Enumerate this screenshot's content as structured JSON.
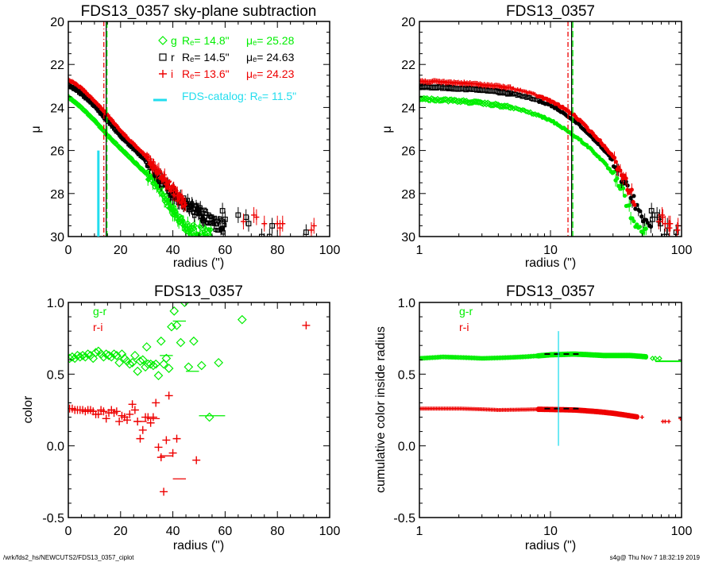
{
  "footer": {
    "path": "/wrk/fds2_hs/NEWCUTS2/FDS13_0357_ciplot",
    "stamp": "s4g@  Thu Nov  7 18:32:19 2019"
  },
  "colors": {
    "g": "#00ee00",
    "r": "#000000",
    "i": "#ee0000",
    "catalog": "#22ddee"
  },
  "chart_data": [
    {
      "id": "profile-linear",
      "type": "scatter",
      "title": "FDS13_0357 sky-plane subtraction",
      "xlabel": "radius (\")",
      "ylabel": "μ",
      "xscale": "linear",
      "xlim": [
        0,
        100
      ],
      "ylim": [
        30,
        20
      ],
      "xticks": [
        "0",
        "20",
        "40",
        "60",
        "80",
        "100"
      ],
      "yticks": [
        "20",
        "22",
        "24",
        "26",
        "28",
        "30"
      ],
      "legend": {
        "placement": "top-right",
        "entries": [
          {
            "band": "g",
            "marker": "diamond",
            "label": "g",
            "re": "Rₑ=  14.8\"",
            "mue": "μₑ= 25.28"
          },
          {
            "band": "r",
            "marker": "square",
            "label": "r",
            "re": "Rₑ=  14.5\"",
            "mue": "μₑ= 24.63"
          },
          {
            "band": "i",
            "marker": "plus",
            "label": "i",
            "re": "Rₑ=  13.6\"",
            "mue": "μₑ= 24.23"
          }
        ],
        "catalog": "FDS-catalog: Rₑ=  11.5\""
      },
      "vlines": [
        {
          "x": 13.6,
          "band": "i",
          "style": "dashdot"
        },
        {
          "x": 14.5,
          "band": "r",
          "style": "solid"
        },
        {
          "x": 14.8,
          "band": "g",
          "style": "dashed"
        }
      ],
      "catalog_line": {
        "x": 11.5,
        "y_from": 30,
        "y_to": 26
      },
      "series": [
        {
          "band": "g",
          "profile": [
            [
              0,
              23.5
            ],
            [
              5,
              24.0
            ],
            [
              10,
              24.6
            ],
            [
              15,
              25.3
            ],
            [
              20,
              25.9
            ],
            [
              25,
              26.5
            ],
            [
              30,
              27.1
            ],
            [
              35,
              27.8
            ],
            [
              40,
              28.8
            ],
            [
              45,
              29.6
            ],
            [
              50,
              29.8
            ],
            [
              55,
              30.0
            ]
          ]
        },
        {
          "band": "r",
          "profile": [
            [
              0,
              22.95
            ],
            [
              5,
              23.35
            ],
            [
              10,
              23.9
            ],
            [
              15,
              24.6
            ],
            [
              20,
              25.3
            ],
            [
              25,
              25.9
            ],
            [
              30,
              26.5
            ],
            [
              35,
              27.3
            ],
            [
              40,
              28.0
            ],
            [
              45,
              28.5
            ],
            [
              50,
              28.9
            ],
            [
              55,
              29.3
            ],
            [
              60,
              29.6
            ]
          ]
        },
        {
          "band": "i",
          "profile": [
            [
              0,
              22.7
            ],
            [
              5,
              23.1
            ],
            [
              10,
              23.7
            ],
            [
              15,
              24.35
            ],
            [
              20,
              25.1
            ],
            [
              25,
              25.7
            ],
            [
              30,
              26.3
            ],
            [
              35,
              27.1
            ],
            [
              40,
              27.8
            ],
            [
              45,
              28.6
            ]
          ]
        }
      ],
      "outer_points": {
        "r": [
          [
            59,
            28.8
          ],
          [
            60,
            29.2
          ],
          [
            65,
            29.0
          ],
          [
            68,
            29.1
          ],
          [
            69,
            29.4
          ],
          [
            74,
            30.0
          ],
          [
            77,
            30.0
          ],
          [
            78,
            29.5
          ],
          [
            91,
            29.8
          ]
        ],
        "i": [
          [
            67,
            29.3
          ],
          [
            71,
            29.0
          ],
          [
            72,
            29.1
          ],
          [
            75,
            29.4
          ],
          [
            80,
            29.4
          ],
          [
            81,
            29.6
          ],
          [
            82,
            29.4
          ],
          [
            93,
            29.7
          ],
          [
            94,
            29.5
          ]
        ]
      }
    },
    {
      "id": "profile-log",
      "type": "scatter",
      "title": "FDS13_0357",
      "xlabel": "radius (\")",
      "ylabel": "μ",
      "xscale": "log",
      "xlim": [
        1,
        100
      ],
      "ylim": [
        30,
        20
      ],
      "xticks": [
        "1",
        "10",
        "100"
      ],
      "yticks": [
        "20",
        "22",
        "24",
        "26",
        "28",
        "30"
      ],
      "vlines": [
        {
          "x": 13.6,
          "band": "i",
          "style": "dashdot"
        },
        {
          "x": 14.5,
          "band": "r",
          "style": "solid"
        },
        {
          "x": 14.8,
          "band": "g",
          "style": "dashed"
        }
      ]
    },
    {
      "id": "color-profile",
      "type": "scatter",
      "title": "FDS13_0357",
      "xlabel": "radius (\")",
      "ylabel": "color",
      "xscale": "linear",
      "xlim": [
        0,
        100
      ],
      "ylim": [
        -0.5,
        1.0
      ],
      "xticks": [
        "0",
        "20",
        "40",
        "60",
        "80",
        "100"
      ],
      "yticks": [
        "1.0",
        "0.5",
        "0.0",
        "-0.5"
      ],
      "legend": {
        "placement": "top-left",
        "entries": [
          {
            "band": "g",
            "label": "g-r"
          },
          {
            "band": "i",
            "label": "r-i"
          }
        ]
      },
      "series": [
        {
          "name": "g-r",
          "band": "g",
          "marker": "diamond",
          "points": [
            [
              0.5,
              0.61
            ],
            [
              1.5,
              0.62
            ],
            [
              2.5,
              0.61
            ],
            [
              3.5,
              0.63
            ],
            [
              4.5,
              0.62
            ],
            [
              5.5,
              0.63
            ],
            [
              6.5,
              0.62
            ],
            [
              7.5,
              0.64
            ],
            [
              8.5,
              0.63
            ],
            [
              9.5,
              0.61
            ],
            [
              10.5,
              0.65
            ],
            [
              11.5,
              0.66
            ],
            [
              12.5,
              0.64
            ],
            [
              13.5,
              0.62
            ],
            [
              14.5,
              0.64
            ],
            [
              15.5,
              0.63
            ],
            [
              16.5,
              0.62
            ],
            [
              17.5,
              0.64
            ],
            [
              18.5,
              0.63
            ],
            [
              19.5,
              0.58
            ],
            [
              20.5,
              0.64
            ],
            [
              21.5,
              0.61
            ],
            [
              22.5,
              0.59
            ],
            [
              23.5,
              0.57
            ],
            [
              24.5,
              0.58
            ],
            [
              25.5,
              0.63
            ],
            [
              26.5,
              0.52
            ],
            [
              27.5,
              0.59
            ],
            [
              28.5,
              0.6
            ],
            [
              29.5,
              0.55
            ],
            [
              30.5,
              0.57
            ],
            [
              31.5,
              0.57
            ],
            [
              32.5,
              0.56
            ],
            [
              33.5,
              0.57
            ],
            [
              34.5,
              0.49
            ],
            [
              35.5,
              0.73
            ],
            [
              36.5,
              0.57
            ],
            [
              37.5,
              0.61
            ],
            [
              38.5,
              0.54
            ],
            [
              39.5,
              0.83
            ],
            [
              40.5,
              0.94
            ],
            [
              41.5,
              0.84
            ],
            [
              43,
              0.72
            ],
            [
              44.5,
              1.0
            ],
            [
              46,
              0.55
            ],
            [
              48,
              0.73
            ],
            [
              51,
              0.56
            ],
            [
              57.5,
              0.58
            ],
            [
              66.5,
              0.88
            ],
            [
              54,
              0.2
            ],
            [
              30,
              0.69
            ]
          ]
        },
        {
          "name": "r-i",
          "band": "i",
          "marker": "plus",
          "points": [
            [
              0.5,
              0.26
            ],
            [
              1.5,
              0.26
            ],
            [
              2.5,
              0.25
            ],
            [
              3.5,
              0.25
            ],
            [
              4.5,
              0.25
            ],
            [
              5.5,
              0.25
            ],
            [
              6.5,
              0.24
            ],
            [
              7.5,
              0.25
            ],
            [
              8.5,
              0.25
            ],
            [
              9.5,
              0.24
            ],
            [
              10.5,
              0.22
            ],
            [
              11.5,
              0.22
            ],
            [
              12.5,
              0.25
            ],
            [
              13.5,
              0.24
            ],
            [
              14.5,
              0.19
            ],
            [
              15.5,
              0.23
            ],
            [
              16.5,
              0.25
            ],
            [
              17.5,
              0.23
            ],
            [
              18.5,
              0.24
            ],
            [
              19.5,
              0.17
            ],
            [
              20.5,
              0.21
            ],
            [
              21.5,
              0.2
            ],
            [
              22.5,
              0.18
            ],
            [
              23.5,
              0.22
            ],
            [
              24.5,
              0.29
            ],
            [
              25.5,
              0.25
            ],
            [
              26.5,
              0.17
            ],
            [
              27.5,
              0.05
            ],
            [
              28.5,
              0.11
            ],
            [
              29.5,
              0.2
            ],
            [
              30.5,
              0.2
            ],
            [
              31.5,
              0.16
            ],
            [
              32.5,
              0.2
            ],
            [
              33.5,
              0.3
            ],
            [
              34.5,
              -0.01
            ],
            [
              35.5,
              -0.08
            ],
            [
              36.5,
              -0.32
            ],
            [
              37.5,
              0.04
            ],
            [
              38.5,
              0.35
            ],
            [
              40,
              -0.05
            ],
            [
              41.5,
              0.05
            ],
            [
              49,
              -0.1
            ],
            [
              91,
              0.84
            ]
          ]
        }
      ],
      "errorbars": [
        {
          "band": "g",
          "x1": 40,
          "x2": 45,
          "y": 0.87
        },
        {
          "band": "g",
          "x1": 35,
          "x2": 40,
          "y": 0.63
        },
        {
          "band": "g",
          "x1": 45,
          "x2": 50,
          "y": 0.52
        },
        {
          "band": "g",
          "x1": 50,
          "x2": 60,
          "y": 0.21
        },
        {
          "band": "i",
          "x1": 35,
          "x2": 40,
          "y": -0.07
        },
        {
          "band": "i",
          "x1": 40,
          "x2": 45,
          "y": -0.23
        },
        {
          "band": "i",
          "x1": 30,
          "x2": 35,
          "y": 0.19
        },
        {
          "band": "i",
          "x1": 25,
          "x2": 30,
          "y": 0.17
        }
      ]
    },
    {
      "id": "cumulative-color",
      "type": "scatter",
      "title": "FDS13_0357",
      "xlabel": "radius (\")",
      "ylabel": "cumulative color inside radius",
      "xscale": "log",
      "xlim": [
        1,
        100
      ],
      "ylim": [
        -0.5,
        1.0
      ],
      "xticks": [
        "1",
        "10",
        "100"
      ],
      "yticks": [
        "1.0",
        "0.5",
        "0.0",
        "-0.5"
      ],
      "legend": {
        "placement": "top-left",
        "entries": [
          {
            "band": "g",
            "label": "g-r"
          },
          {
            "band": "i",
            "label": "r-i"
          }
        ]
      },
      "catalog_line": {
        "x": 11.5,
        "y_from": 0.0,
        "y_to": 0.8
      },
      "series": [
        {
          "name": "g-r",
          "band": "g",
          "marker": "diamond",
          "profile": [
            [
              1,
              0.61
            ],
            [
              1.5,
              0.62
            ],
            [
              3,
              0.61
            ],
            [
              6,
              0.62
            ],
            [
              10,
              0.635
            ],
            [
              15,
              0.64
            ],
            [
              25,
              0.63
            ],
            [
              40,
              0.63
            ],
            [
              55,
              0.62
            ]
          ],
          "outer": [
            [
              60,
              0.61
            ],
            [
              63,
              0.61
            ],
            [
              68,
              0.61
            ]
          ],
          "bar": {
            "x1": 63,
            "x2": 100,
            "y": 0.59
          }
        },
        {
          "name": "r-i",
          "band": "i",
          "marker": "plus",
          "profile": [
            [
              1,
              0.26
            ],
            [
              2,
              0.26
            ],
            [
              4,
              0.25
            ],
            [
              8,
              0.255
            ],
            [
              15,
              0.25
            ],
            [
              25,
              0.235
            ],
            [
              40,
              0.21
            ],
            [
              47,
              0.2
            ]
          ],
          "outer": [
            [
              50,
              0.2
            ],
            [
              72,
              0.17
            ],
            [
              75,
              0.17
            ],
            [
              80,
              0.17
            ],
            [
              98,
              0.19
            ]
          ]
        }
      ],
      "ref_bars": [
        {
          "band": "g",
          "x1": 9,
          "x2": 17,
          "y": 0.64
        },
        {
          "band": "i",
          "x1": 9,
          "x2": 17,
          "y": 0.26
        }
      ]
    }
  ]
}
